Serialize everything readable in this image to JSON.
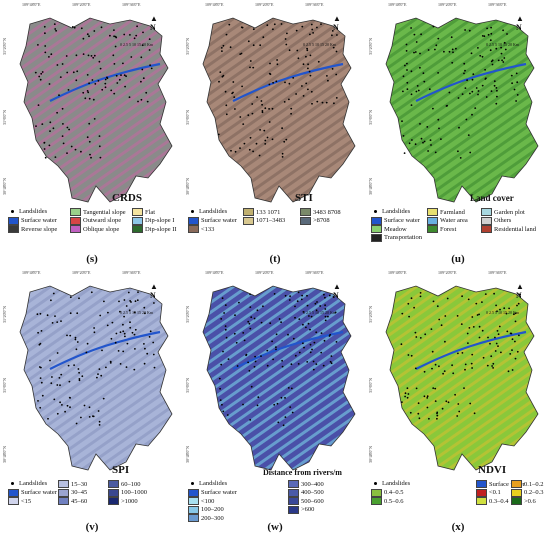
{
  "coords": {
    "top": [
      "109°48'0\"E",
      "109°20'0\"E",
      "109°36'0\"E"
    ],
    "left": [
      "31°20'0\"N",
      "31°6'0\"N",
      "30°48'0\"N"
    ]
  },
  "scale_label": "0 2.5 5  10  15  20  Km",
  "north_label": "N",
  "panels": [
    {
      "id": "s",
      "label": "(s)",
      "title": "CRDS",
      "map_color": "#8a8a8a",
      "map_color2": "#c06aa0",
      "legend": [
        {
          "type": "dot",
          "text": "Landslides"
        },
        {
          "type": "sw",
          "color": "#9ad08a",
          "text": "Tangential slope"
        },
        {
          "type": "sw",
          "color": "#f4e4a0",
          "text": "Flat"
        },
        {
          "type": "sw",
          "color": "#2255cc",
          "text": "Surface water"
        },
        {
          "type": "sw",
          "color": "#d64545",
          "text": "Outward slope"
        },
        {
          "type": "sw",
          "color": "#8ec7e8",
          "text": "Dip-slope I"
        },
        {
          "type": "sw",
          "color": "#3a3a3a",
          "text": "Reverse slope"
        },
        {
          "type": "sw",
          "color": "#c060c0",
          "text": "Oblique slope"
        },
        {
          "type": "sw",
          "color": "#2d6a2d",
          "text": "Dip-slope II"
        }
      ]
    },
    {
      "id": "t",
      "label": "(t)",
      "title": "STI",
      "map_color": "#a88878",
      "map_color2": "#7d6458",
      "legend": [
        {
          "type": "dot",
          "text": "Landslides"
        },
        {
          "type": "sw",
          "color": "#c0b070",
          "text": "133  1071"
        },
        {
          "type": "sw",
          "color": "#7a8a6a",
          "text": "3483  8708"
        },
        {
          "type": "sw",
          "color": "#2255cc",
          "text": "Surface water"
        },
        {
          "type": "sw",
          "color": "#d8c890",
          "text": "1071–3483"
        },
        {
          "type": "sw",
          "color": "#5a6a7a",
          "text": ">8708"
        },
        {
          "type": "sw",
          "color": "#8a6a5a",
          "text": "<133"
        }
      ]
    },
    {
      "id": "u",
      "label": "(u)",
      "title": "Land cover",
      "map_color": "#6ab84a",
      "map_color2": "#3e8a2e",
      "legend": [
        {
          "type": "dot",
          "text": "Landslides"
        },
        {
          "type": "sw",
          "color": "#e8e070",
          "text": "Farmland"
        },
        {
          "type": "sw",
          "color": "#a8d8e0",
          "text": "Garden plot"
        },
        {
          "type": "sw",
          "color": "#2255cc",
          "text": "Surface water"
        },
        {
          "type": "sw",
          "color": "#6ab0e0",
          "text": "Water area"
        },
        {
          "type": "sw",
          "color": "#d0d0d0",
          "text": "Others"
        },
        {
          "type": "sw",
          "color": "#8ad070",
          "text": "Meadow"
        },
        {
          "type": "sw",
          "color": "#3e8a2e",
          "text": "Forest"
        },
        {
          "type": "sw",
          "color": "#b04030",
          "text": "Residential land"
        },
        {
          "type": "sw",
          "color": "#222222",
          "text": "Transportation"
        }
      ]
    },
    {
      "id": "v",
      "label": "(v)",
      "title": "SPI",
      "map_color": "#a8b4d8",
      "map_color2": "#8894c0",
      "legend": [
        {
          "type": "dot",
          "text": "Landslides"
        },
        {
          "type": "sw",
          "color": "#b8c0e0",
          "text": "15–30"
        },
        {
          "type": "sw",
          "color": "#4a5aa0",
          "text": "60–100"
        },
        {
          "type": "sw",
          "color": "#2255cc",
          "text": "Surface water"
        },
        {
          "type": "sw",
          "color": "#9aa4d0",
          "text": "30–45"
        },
        {
          "type": "sw",
          "color": "#3a4890",
          "text": "100–1000"
        },
        {
          "type": "sw",
          "color": "#d0d4ec",
          "text": "<15"
        },
        {
          "type": "sw",
          "color": "#7080c0",
          "text": "45–60"
        },
        {
          "type": "sw",
          "color": "#1a2870",
          "text": ">1000"
        }
      ]
    },
    {
      "id": "w",
      "label": "(w)",
      "title": "Distance from rivers/m",
      "map_color": "#4a50a8",
      "map_color2": "#7ad0e8",
      "legend": [
        {
          "type": "dot",
          "text": "Landslides"
        },
        {
          "type": "sw",
          "color": "#5a6ab8",
          "text": "300–400"
        },
        {
          "type": "sw",
          "color": "#2255cc",
          "text": "Surface water"
        },
        {
          "type": "sw",
          "color": "#4a5aa8",
          "text": "400–500"
        },
        {
          "type": "sw",
          "color": "#a8e0f0",
          "text": "<100"
        },
        {
          "type": "sw",
          "color": "#3a4898",
          "text": "500–600"
        },
        {
          "type": "sw",
          "color": "#88c8e8",
          "text": "100–200"
        },
        {
          "type": "sw",
          "color": "#2a3888",
          "text": ">600"
        },
        {
          "type": "sw",
          "color": "#6a9ad0",
          "text": "200–300"
        }
      ]
    },
    {
      "id": "x",
      "label": "(x)",
      "title": "NDVI",
      "map_color": "#8ac83a",
      "map_color2": "#d0c030",
      "legend": [
        {
          "type": "dot",
          "text": "Landslides"
        },
        {
          "type": "sw",
          "color": "#2255cc",
          "text": "Surface water"
        },
        {
          "type": "sw",
          "color": "#e8a020",
          "text": "0.1–0.2"
        },
        {
          "type": "sw",
          "color": "#8ac040",
          "text": "0.4–0.5"
        },
        {
          "type": "sw",
          "color": "#c02020",
          "text": "<0.1"
        },
        {
          "type": "sw",
          "color": "#e8d020",
          "text": "0.2–0.3"
        },
        {
          "type": "sw",
          "color": "#4aa030",
          "text": "0.5–0.6"
        },
        {
          "type": "sw",
          "color": "#d0e040",
          "text": "0.3–0.4"
        },
        {
          "type": "sw",
          "color": "#1a6a1a",
          "text": ">0.6"
        }
      ]
    }
  ]
}
